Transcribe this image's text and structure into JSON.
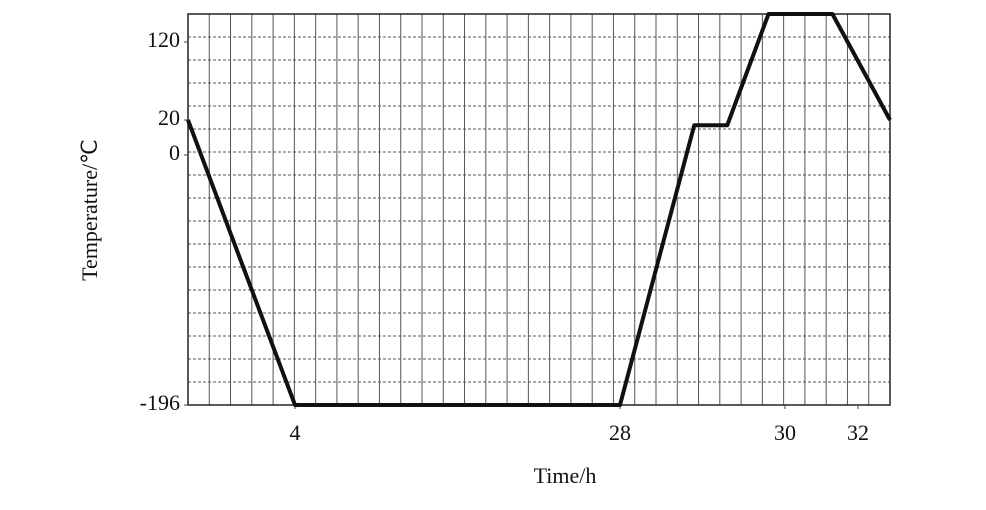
{
  "chart_data": {
    "type": "line",
    "x_label": "Time/h",
    "y_label": "Temperature/℃",
    "x": [
      0,
      4,
      28,
      28.9,
      29.3,
      29.8,
      31.3,
      33
    ],
    "values": [
      20,
      -196,
      -196,
      17,
      17,
      156,
      156,
      20
    ],
    "color": "#111111",
    "xlim": [
      0,
      33
    ],
    "xticks": [
      4,
      28,
      30,
      32
    ],
    "ylim": [
      -196,
      156
    ],
    "yticks": [
      -196,
      0,
      20,
      120
    ],
    "grid": true
  }
}
